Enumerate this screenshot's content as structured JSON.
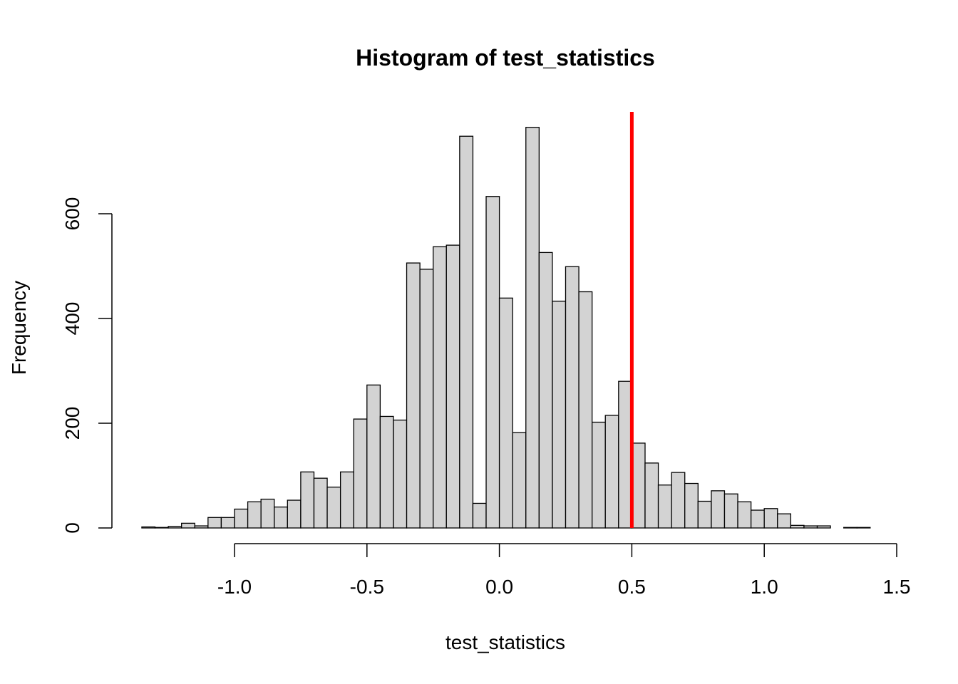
{
  "chart_data": {
    "type": "bar",
    "title": "Histogram of test_statistics",
    "xlabel": "test_statistics",
    "ylabel": "Frequency",
    "bin_width": 0.05,
    "bins_start": -1.35,
    "values": [
      2,
      1,
      3,
      9,
      4,
      20,
      20,
      36,
      50,
      55,
      40,
      53,
      107,
      95,
      78,
      107,
      208,
      273,
      213,
      206,
      506,
      494,
      537,
      540,
      748,
      47,
      633,
      439,
      182,
      765,
      526,
      433,
      499,
      451,
      202,
      215,
      280,
      162,
      124,
      82,
      106,
      85,
      51,
      71,
      65,
      50,
      34,
      37,
      27,
      5,
      4,
      4,
      0,
      1,
      1
    ],
    "xlim": [
      -1.0,
      1.5
    ],
    "ylim": [
      0,
      765
    ],
    "x_ticks": [
      -1.0,
      -0.5,
      0.0,
      0.5,
      1.0,
      1.5
    ],
    "x_tick_labels": [
      "-1.0",
      "-0.5",
      "0.0",
      "0.5",
      "1.0",
      "1.5"
    ],
    "y_ticks": [
      0,
      200,
      400,
      600
    ],
    "y_tick_labels": [
      "0",
      "200",
      "400",
      "600"
    ],
    "reference_line": {
      "x": 0.5,
      "color": "#ff0000"
    },
    "bar_fill": "#d3d3d3",
    "bar_stroke": "#000000",
    "grid": false,
    "legend": "none"
  }
}
